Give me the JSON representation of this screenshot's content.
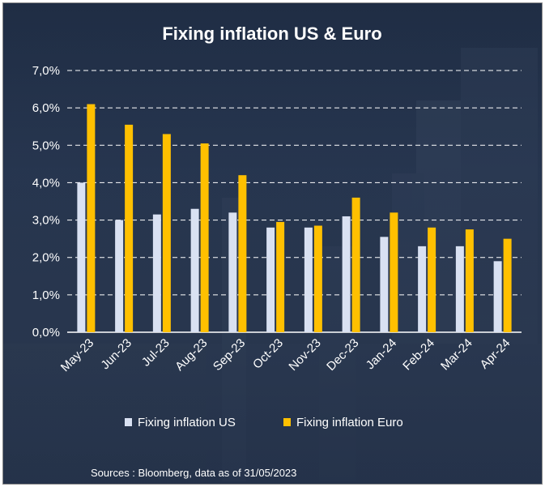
{
  "chart_data": {
    "type": "bar",
    "title": "Fixing inflation US & Euro",
    "categories": [
      "May-23",
      "Jun-23",
      "Jul-23",
      "Aug-23",
      "Sep-23",
      "Oct-23",
      "Nov-23",
      "Dec-23",
      "Jan-24",
      "Feb-24",
      "Mar-24",
      "Apr-24"
    ],
    "series": [
      {
        "name": "Fixing inflation US",
        "color": "#d9e1f2",
        "values": [
          4.0,
          3.0,
          3.15,
          3.3,
          3.2,
          2.8,
          2.8,
          3.1,
          2.55,
          2.3,
          2.3,
          1.9
        ]
      },
      {
        "name": "Fixing inflation Euro",
        "color": "#ffc000",
        "values": [
          6.1,
          5.55,
          5.3,
          5.05,
          4.2,
          2.95,
          2.85,
          3.6,
          3.2,
          2.8,
          2.75,
          2.5
        ]
      }
    ],
    "y_ticks": [
      "0,0%",
      "1,0%",
      "2,0%",
      "3,0%",
      "4,0%",
      "5,0%",
      "6,0%",
      "7,0%"
    ],
    "ylim": [
      0,
      7
    ],
    "grid": "horizontal dashed",
    "legend": "bottom",
    "source": "Sources : Bloomberg, data as of 31/05/2023"
  }
}
